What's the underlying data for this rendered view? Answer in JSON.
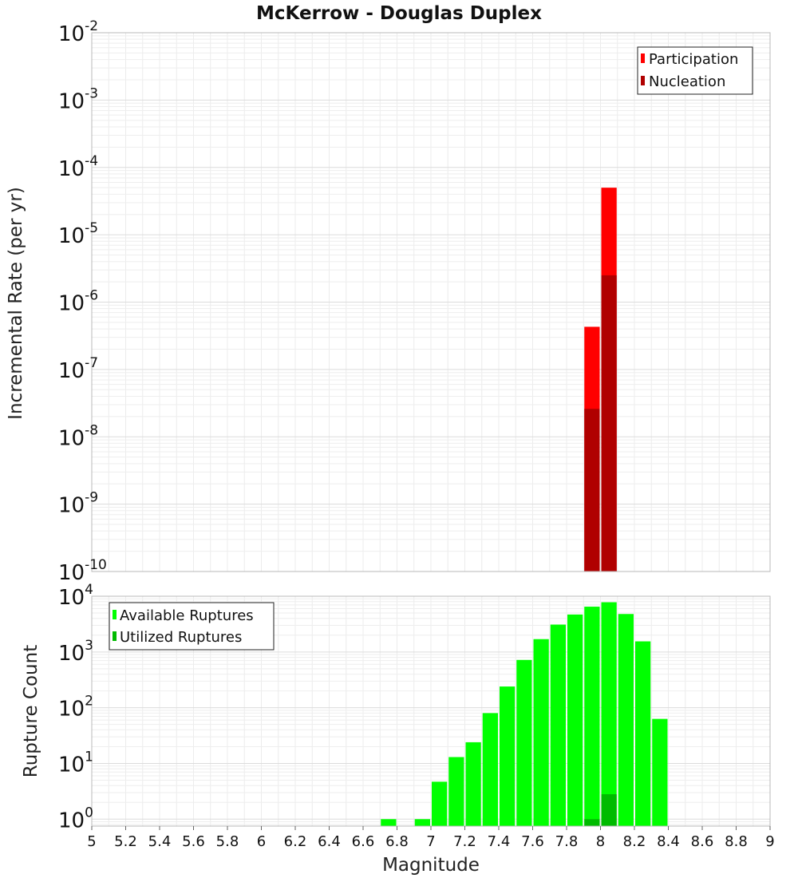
{
  "chart_data": {
    "title": "McKerrow - Douglas Duplex",
    "xlabel": "Magnitude",
    "xlim": [
      5,
      9
    ],
    "xticks": [
      "5",
      "5.2",
      "5.4",
      "5.6",
      "5.8",
      "6",
      "6.2",
      "6.4",
      "6.6",
      "6.8",
      "7",
      "7.2",
      "7.4",
      "7.6",
      "7.8",
      "8",
      "8.2",
      "8.4",
      "8.6",
      "8.8",
      "9"
    ],
    "bin_width": 0.1,
    "panels": [
      {
        "type": "bar",
        "yscale": "log",
        "ylabel": "Incremental Rate (per yr)",
        "ylim_exponents": [
          -10,
          -2
        ],
        "yticks": [
          {
            "base": "10",
            "exp": "-2"
          },
          {
            "base": "10",
            "exp": "-3"
          },
          {
            "base": "10",
            "exp": "-4"
          },
          {
            "base": "10",
            "exp": "-5"
          },
          {
            "base": "10",
            "exp": "-6"
          },
          {
            "base": "10",
            "exp": "-7"
          },
          {
            "base": "10",
            "exp": "-8"
          },
          {
            "base": "10",
            "exp": "-9"
          },
          {
            "base": "10",
            "exp": "-10"
          }
        ],
        "legend_position": "top-right",
        "series": [
          {
            "name": "Participation",
            "color": "#ff0000",
            "x": [
              7.95,
              8.05
            ],
            "values": [
              4.3e-07,
              5e-05
            ]
          },
          {
            "name": "Nucleation",
            "color": "#b00000",
            "x": [
              7.95,
              8.05
            ],
            "values": [
              2.6e-08,
              2.5e-06
            ]
          }
        ]
      },
      {
        "type": "bar",
        "yscale": "log",
        "ylabel": "Rupture Count",
        "ylim": [
          0.75,
          10000
        ],
        "yticks": [
          {
            "base": "10",
            "exp": "4"
          },
          {
            "base": "10",
            "exp": "3"
          },
          {
            "base": "10",
            "exp": "2"
          },
          {
            "base": "10",
            "exp": "1"
          },
          {
            "base": "10",
            "exp": "0"
          }
        ],
        "legend_position": "top-left",
        "series": [
          {
            "name": "Available Ruptures",
            "color": "#00ff00",
            "x": [
              6.75,
              6.95,
              7.05,
              7.15,
              7.25,
              7.35,
              7.45,
              7.55,
              7.65,
              7.75,
              7.85,
              7.95,
              8.05,
              8.15,
              8.25,
              8.35
            ],
            "values": [
              1,
              1,
              4.7,
              13,
              24,
              80,
              240,
              720,
              1700,
              3100,
              4700,
              6500,
              7800,
              4800,
              1550,
              63
            ]
          },
          {
            "name": "Utilized Ruptures",
            "color": "#00bb00",
            "x": [
              7.95,
              8.05
            ],
            "values": [
              1,
              2.8
            ]
          }
        ]
      }
    ]
  }
}
